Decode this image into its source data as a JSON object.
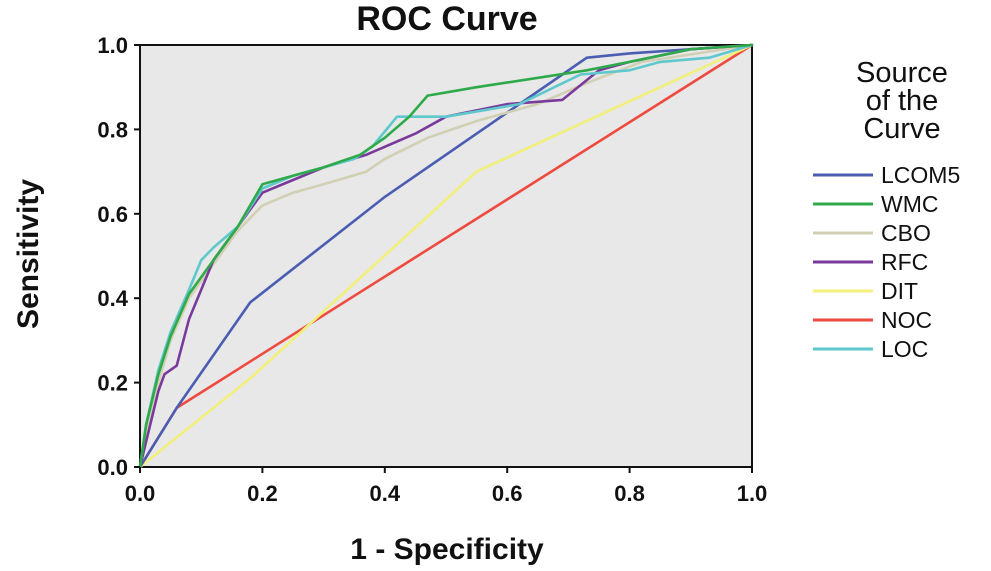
{
  "chart_data": {
    "type": "line",
    "title": "ROC Curve",
    "xlabel": "1 - Specificity",
    "ylabel": "Sensitivity",
    "xlim": [
      0,
      1
    ],
    "ylim": [
      0,
      1
    ],
    "x_ticks": [
      "0.0",
      "0.2",
      "0.4",
      "0.6",
      "0.8",
      "1.0"
    ],
    "y_ticks": [
      "0.0",
      "0.2",
      "0.4",
      "0.6",
      "0.8",
      "1.0"
    ],
    "plot_background": "#e8e8e8",
    "grid": false,
    "legend": {
      "title_lines": [
        "Source",
        "of the",
        "Curve"
      ],
      "position": "right"
    },
    "series": [
      {
        "name": "LCOM5",
        "color": "#4a5db3",
        "points": [
          [
            0,
            0
          ],
          [
            0.06,
            0.14
          ],
          [
            0.18,
            0.39
          ],
          [
            0.4,
            0.64
          ],
          [
            0.73,
            0.97
          ],
          [
            0.8,
            0.98
          ],
          [
            1.0,
            1.0
          ]
        ]
      },
      {
        "name": "WMC",
        "color": "#2eaa4a",
        "points": [
          [
            0,
            0
          ],
          [
            0.01,
            0.1
          ],
          [
            0.03,
            0.22
          ],
          [
            0.05,
            0.31
          ],
          [
            0.08,
            0.41
          ],
          [
            0.12,
            0.49
          ],
          [
            0.16,
            0.57
          ],
          [
            0.2,
            0.67
          ],
          [
            0.25,
            0.69
          ],
          [
            0.3,
            0.71
          ],
          [
            0.36,
            0.74
          ],
          [
            0.4,
            0.78
          ],
          [
            0.44,
            0.83
          ],
          [
            0.47,
            0.88
          ],
          [
            0.55,
            0.9
          ],
          [
            0.73,
            0.94
          ],
          [
            0.8,
            0.96
          ],
          [
            0.9,
            0.99
          ],
          [
            1.0,
            1.0
          ]
        ]
      },
      {
        "name": "CBO",
        "color": "#d2d0b4",
        "points": [
          [
            0,
            0
          ],
          [
            0.01,
            0.08
          ],
          [
            0.03,
            0.2
          ],
          [
            0.05,
            0.3
          ],
          [
            0.08,
            0.4
          ],
          [
            0.12,
            0.48
          ],
          [
            0.16,
            0.56
          ],
          [
            0.2,
            0.62
          ],
          [
            0.25,
            0.65
          ],
          [
            0.3,
            0.67
          ],
          [
            0.37,
            0.7
          ],
          [
            0.4,
            0.73
          ],
          [
            0.47,
            0.78
          ],
          [
            0.55,
            0.82
          ],
          [
            0.65,
            0.86
          ],
          [
            0.73,
            0.91
          ],
          [
            0.82,
            0.96
          ],
          [
            1.0,
            1.0
          ]
        ]
      },
      {
        "name": "RFC",
        "color": "#7a3a9b",
        "points": [
          [
            0,
            0
          ],
          [
            0.01,
            0.06
          ],
          [
            0.03,
            0.18
          ],
          [
            0.04,
            0.22
          ],
          [
            0.06,
            0.24
          ],
          [
            0.08,
            0.35
          ],
          [
            0.1,
            0.42
          ],
          [
            0.12,
            0.49
          ],
          [
            0.16,
            0.57
          ],
          [
            0.2,
            0.65
          ],
          [
            0.25,
            0.68
          ],
          [
            0.3,
            0.71
          ],
          [
            0.37,
            0.74
          ],
          [
            0.45,
            0.79
          ],
          [
            0.5,
            0.83
          ],
          [
            0.6,
            0.86
          ],
          [
            0.69,
            0.87
          ],
          [
            0.75,
            0.94
          ],
          [
            0.8,
            0.96
          ],
          [
            0.9,
            0.99
          ],
          [
            1.0,
            1.0
          ]
        ]
      },
      {
        "name": "DIT",
        "color": "#f2f07a",
        "points": [
          [
            0,
            0
          ],
          [
            0.18,
            0.21
          ],
          [
            0.55,
            0.7
          ],
          [
            1.0,
            1.0
          ]
        ]
      },
      {
        "name": "NOC",
        "color": "#ee4a40",
        "points": [
          [
            0,
            0
          ],
          [
            0.06,
            0.14
          ],
          [
            1.0,
            1.0
          ]
        ]
      },
      {
        "name": "LOC",
        "color": "#5ec8cc",
        "points": [
          [
            0,
            0
          ],
          [
            0.01,
            0.1
          ],
          [
            0.03,
            0.23
          ],
          [
            0.05,
            0.32
          ],
          [
            0.08,
            0.42
          ],
          [
            0.1,
            0.49
          ],
          [
            0.12,
            0.52
          ],
          [
            0.16,
            0.57
          ],
          [
            0.2,
            0.66
          ],
          [
            0.25,
            0.69
          ],
          [
            0.3,
            0.71
          ],
          [
            0.35,
            0.73
          ],
          [
            0.38,
            0.76
          ],
          [
            0.42,
            0.83
          ],
          [
            0.5,
            0.83
          ],
          [
            0.62,
            0.86
          ],
          [
            0.72,
            0.93
          ],
          [
            0.8,
            0.94
          ],
          [
            0.85,
            0.96
          ],
          [
            0.93,
            0.97
          ],
          [
            1.0,
            1.0
          ]
        ]
      }
    ]
  }
}
